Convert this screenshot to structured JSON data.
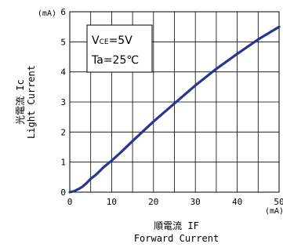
{
  "chart_data": {
    "type": "line",
    "y_unit": "(mA)",
    "x_unit": "(mA)",
    "ylabel_jp": "光電流 Ic",
    "ylabel_en": "Light Current",
    "xlabel_jp": "順電流 IF",
    "xlabel_en": "Forward Current",
    "xlim": [
      0,
      50
    ],
    "ylim": [
      0,
      6
    ],
    "x_ticks": [
      "0",
      "10",
      "20",
      "30",
      "40",
      "50"
    ],
    "y_ticks": [
      "0",
      "1",
      "2",
      "3",
      "4",
      "5",
      "6"
    ],
    "grid": true,
    "legend": {
      "line1_main": "V",
      "line1_sub": "CE",
      "line1_rest": "=5V",
      "line2": "Ta=25℃"
    },
    "series": [
      {
        "color": "#2b3590",
        "x": [
          0,
          1,
          2,
          3,
          4,
          5,
          6,
          7,
          8,
          10,
          12,
          15,
          20,
          25,
          30,
          35,
          40,
          45,
          50
        ],
        "y": [
          0,
          0.03,
          0.1,
          0.18,
          0.3,
          0.45,
          0.55,
          0.68,
          0.82,
          1.05,
          1.3,
          1.7,
          2.35,
          2.95,
          3.55,
          4.1,
          4.6,
          5.08,
          5.5
        ]
      }
    ]
  }
}
